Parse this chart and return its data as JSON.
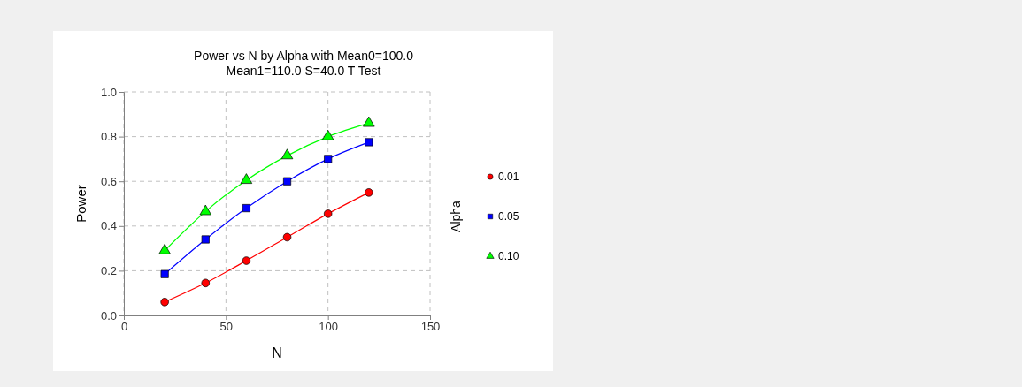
{
  "chart_data": {
    "type": "line",
    "title": "Power vs N by Alpha with Mean0=100.0\nMean1=110.0 S=40.0 T Test",
    "xlabel": "N",
    "ylabel": "Power",
    "legend_title": "Alpha",
    "x": [
      20,
      40,
      60,
      80,
      100,
      120
    ],
    "xlim": [
      0,
      150
    ],
    "xticks": [
      0,
      50,
      100,
      150
    ],
    "ylim": [
      0,
      1
    ],
    "yticks": [
      {
        "value": 0,
        "label": "0.0"
      },
      {
        "value": 0.2,
        "label": "0.2"
      },
      {
        "value": 0.4,
        "label": "0.4"
      },
      {
        "value": 0.6,
        "label": "0.6"
      },
      {
        "value": 0.8,
        "label": "0.8"
      },
      {
        "value": 1,
        "label": "1.0"
      }
    ],
    "grid": true,
    "legend": "right",
    "line_style": "solid",
    "series": [
      {
        "name": "0.01",
        "color": "#ff0000",
        "marker": "circle",
        "values": [
          0.06,
          0.145,
          0.245,
          0.35,
          0.455,
          0.55
        ]
      },
      {
        "name": "0.05",
        "color": "#0000ff",
        "marker": "square",
        "values": [
          0.185,
          0.34,
          0.48,
          0.6,
          0.7,
          0.775
        ]
      },
      {
        "name": "0.10",
        "color": "#00ff00",
        "marker": "triangle",
        "values": [
          0.29,
          0.465,
          0.605,
          0.715,
          0.8,
          0.86
        ]
      }
    ]
  }
}
